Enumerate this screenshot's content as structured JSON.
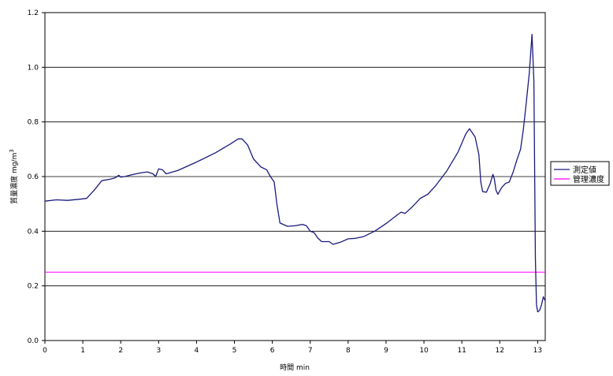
{
  "chart_data": {
    "type": "line",
    "title": "",
    "xlabel": "時間 min",
    "ylabel": "質量濃度 mg/m",
    "ylabel_sup": "3",
    "xlim": [
      0,
      13.2
    ],
    "ylim": [
      0,
      1.2
    ],
    "x_ticks": [
      "0",
      "1",
      "2",
      "3",
      "4",
      "5",
      "6",
      "7",
      "8",
      "9",
      "10",
      "11",
      "12",
      "13"
    ],
    "y_ticks": [
      "0.0",
      "0.2",
      "0.4",
      "0.6",
      "0.8",
      "1.0",
      "1.2"
    ],
    "grid": "horizontal",
    "legend_position": "right",
    "series": [
      {
        "name": "測定値",
        "color": "#1a1a7e",
        "x": [
          0,
          0.3,
          0.6,
          0.9,
          1.1,
          1.3,
          1.5,
          1.7,
          1.85,
          1.95,
          2.0,
          2.1,
          2.3,
          2.5,
          2.7,
          2.85,
          2.92,
          3.0,
          3.1,
          3.2,
          3.5,
          4.0,
          4.5,
          4.9,
          5.1,
          5.2,
          5.35,
          5.5,
          5.7,
          5.85,
          5.95,
          6.05,
          6.12,
          6.2,
          6.4,
          6.6,
          6.8,
          6.9,
          7.0,
          7.1,
          7.2,
          7.3,
          7.5,
          7.6,
          7.8,
          8.0,
          8.2,
          8.4,
          8.7,
          9.0,
          9.3,
          9.4,
          9.5,
          9.7,
          9.9,
          10.1,
          10.3,
          10.6,
          10.9,
          11.1,
          11.2,
          11.35,
          11.45,
          11.5,
          11.55,
          11.65,
          11.75,
          11.82,
          11.86,
          11.9,
          11.95,
          12.05,
          12.15,
          12.25,
          12.35,
          12.45,
          12.55,
          12.62,
          12.7,
          12.78,
          12.85,
          12.9,
          12.94,
          12.97,
          13.0,
          13.05,
          13.1,
          13.15,
          13.2
        ],
        "y": [
          0.51,
          0.515,
          0.513,
          0.517,
          0.52,
          0.55,
          0.585,
          0.59,
          0.595,
          0.605,
          0.598,
          0.6,
          0.607,
          0.613,
          0.617,
          0.61,
          0.6,
          0.628,
          0.625,
          0.61,
          0.622,
          0.653,
          0.687,
          0.72,
          0.738,
          0.738,
          0.715,
          0.665,
          0.635,
          0.625,
          0.6,
          0.58,
          0.5,
          0.43,
          0.418,
          0.42,
          0.425,
          0.42,
          0.4,
          0.395,
          0.375,
          0.362,
          0.362,
          0.352,
          0.36,
          0.372,
          0.374,
          0.38,
          0.4,
          0.428,
          0.46,
          0.47,
          0.465,
          0.49,
          0.52,
          0.535,
          0.565,
          0.62,
          0.69,
          0.755,
          0.775,
          0.745,
          0.68,
          0.58,
          0.545,
          0.543,
          0.575,
          0.608,
          0.59,
          0.55,
          0.535,
          0.56,
          0.575,
          0.58,
          0.615,
          0.66,
          0.7,
          0.77,
          0.87,
          0.98,
          1.12,
          0.95,
          0.3,
          0.13,
          0.105,
          0.11,
          0.13,
          0.16,
          0.145
        ]
      },
      {
        "name": "管理濃度",
        "color": "#ff00ff",
        "x": [
          0,
          13.2
        ],
        "y": [
          0.25,
          0.25
        ]
      }
    ]
  }
}
